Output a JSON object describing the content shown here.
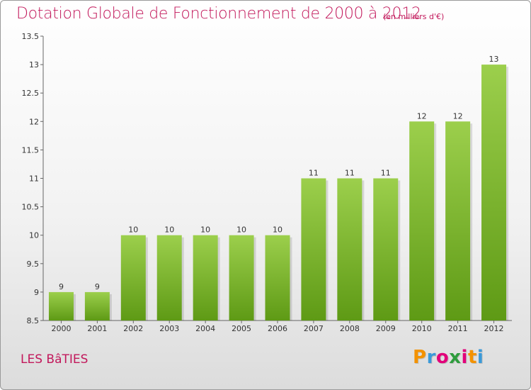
{
  "header": {
    "title": "Dotation Globale de Fonctionnement de 2000 à 2012",
    "subtitle": "(en milliers d'€)"
  },
  "footer": {
    "commune": "LES BâTIES",
    "logo_letters": [
      "P",
      "r",
      "o",
      "x",
      "i",
      "t",
      "i"
    ]
  },
  "colors": {
    "title": "#c2185b",
    "bar_top": "#9ccf4c",
    "bar_bottom": "#5e9a15",
    "logo": [
      "#f39200",
      "#3a9ad9",
      "#e2007a",
      "#2e9c3d",
      "#e2007a",
      "#f39200",
      "#3a9ad9"
    ]
  },
  "chart_data": {
    "type": "bar",
    "title": "Dotation Globale de Fonctionnement de 2000 à 2012",
    "subtitle": "(en milliers d'€)",
    "categories": [
      "2000",
      "2001",
      "2002",
      "2003",
      "2004",
      "2005",
      "2006",
      "2007",
      "2008",
      "2009",
      "2010",
      "2011",
      "2012"
    ],
    "values": [
      9,
      9,
      10,
      10,
      10,
      10,
      10,
      11,
      11,
      11,
      12,
      12,
      13
    ],
    "ylim": [
      8.5,
      13.5
    ],
    "yticks": [
      "8.5",
      "9",
      "9.5",
      "10",
      "10.5",
      "11",
      "11.5",
      "12",
      "12.5",
      "13",
      "13.5"
    ],
    "xlabel": "",
    "ylabel": "",
    "grid": false,
    "data_labels": true
  }
}
